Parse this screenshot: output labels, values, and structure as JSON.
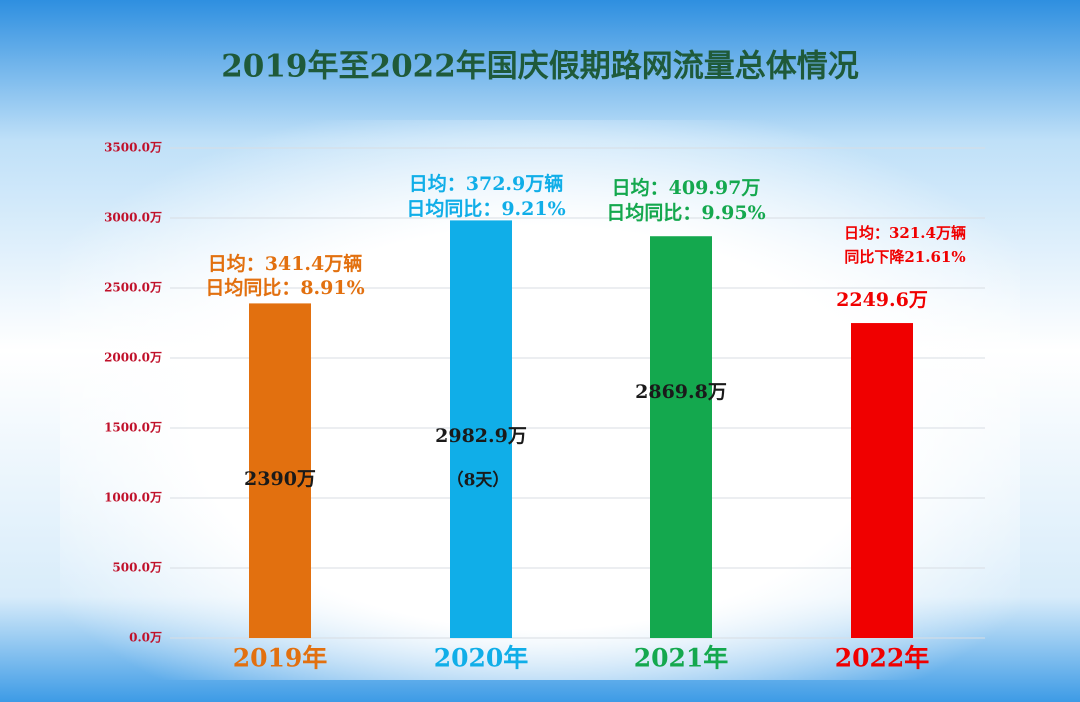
{
  "chart_data": {
    "type": "bar",
    "title": "2019年至2022年国庆假期路网流量总体情况",
    "categories": [
      "2019年",
      "2020年",
      "2021年",
      "2022年"
    ],
    "values": [
      2390,
      2982.9,
      2869.8,
      2249.6
    ],
    "value_labels": [
      "2390万",
      "2982.9万",
      "2869.8万",
      "2249.6万"
    ],
    "colors": [
      "#e2700f",
      "#10aee8",
      "#14a84e",
      "#f00000"
    ],
    "bar_notes": [
      [
        "日均：341.4万辆",
        "日均同比：8.91%"
      ],
      [
        "日均：372.9万辆",
        "日均同比：9.21%"
      ],
      [
        "日均：409.97万",
        "日均同比：9.95%"
      ],
      [
        "日均：321.4万辆",
        "同比下降21.61%"
      ]
    ],
    "extra_note": "（8天）",
    "ylim": [
      0,
      3500
    ],
    "yticks": [
      {
        "value": 0,
        "label": "0.0万"
      },
      {
        "value": 500,
        "label": "500.0万"
      },
      {
        "value": 1000,
        "label": "1000.0万"
      },
      {
        "value": 1500,
        "label": "1500.0万"
      },
      {
        "value": 2000,
        "label": "2000.0万"
      },
      {
        "value": 2500,
        "label": "2500.0万"
      },
      {
        "value": 3000,
        "label": "3000.0万"
      },
      {
        "value": 3500,
        "label": "3500.0万"
      }
    ],
    "grid": true
  }
}
